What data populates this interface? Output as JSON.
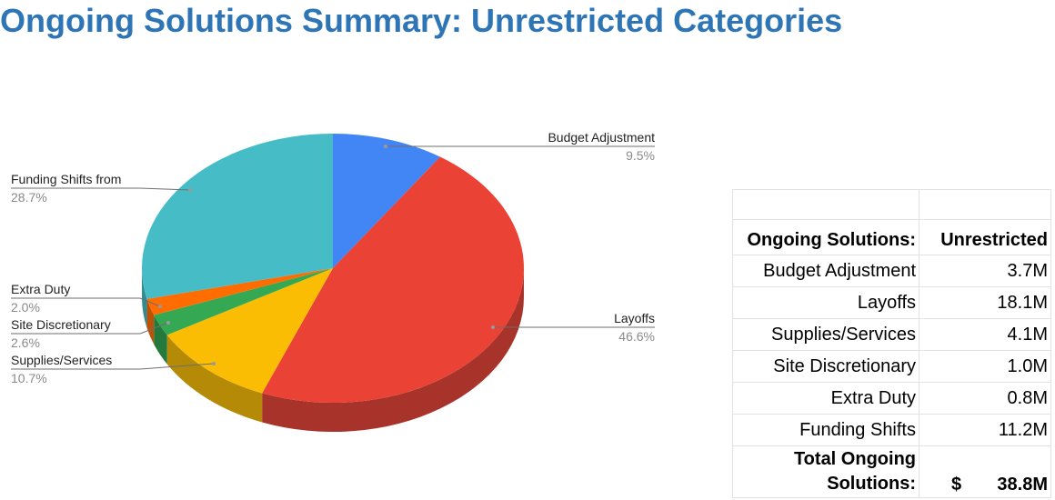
{
  "title": "Ongoing Solutions Summary:  Unrestricted Categories",
  "chart_data": {
    "type": "pie",
    "slices": [
      {
        "label": "Budget Adjustment",
        "percent_label": "9.5%",
        "value": 9.5,
        "color": "#4285f4",
        "side_color": "#3367c0"
      },
      {
        "label": "Layoffs",
        "percent_label": "46.6%",
        "value": 46.6,
        "color": "#ea4335",
        "side_color": "#a8332b"
      },
      {
        "label": "Supplies/Services",
        "percent_label": "10.7%",
        "value": 10.7,
        "color": "#fbbc04",
        "side_color": "#b58a07"
      },
      {
        "label": "Site Discretionary",
        "percent_label": "2.6%",
        "value": 2.6,
        "color": "#34a853",
        "side_color": "#247a3b"
      },
      {
        "label": "Extra Duty",
        "percent_label": "2.0%",
        "value": 2.0,
        "color": "#ff6d01",
        "side_color": "#bd5106"
      },
      {
        "label": "Funding Shifts from",
        "percent_label": "28.7%",
        "value": 28.7,
        "color": "#46bdc6",
        "side_color": "#338a91"
      }
    ]
  },
  "table": {
    "header_col1": "Ongoing Solutions:",
    "header_col2": "Unrestricted",
    "rows": [
      {
        "label": "Budget Adjustment",
        "value": "3.7M"
      },
      {
        "label": "Layoffs",
        "value": "18.1M"
      },
      {
        "label": "Supplies/Services",
        "value": "4.1M"
      },
      {
        "label": "Site Discretionary",
        "value": "1.0M"
      },
      {
        "label": "Extra Duty",
        "value": "0.8M"
      },
      {
        "label": "Funding Shifts",
        "value": "11.2M"
      }
    ],
    "total_label_line1": "Total Ongoing",
    "total_label_line2": "Solutions:",
    "total_currency": "$",
    "total_value": "38.8M"
  }
}
